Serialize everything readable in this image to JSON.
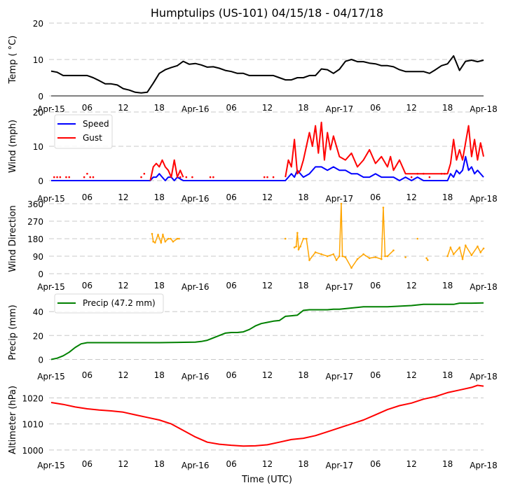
{
  "title": "Humptulips (US-101) 04/15/18 - 04/17/18",
  "xlabel": "Time (UTC)",
  "x_ticks": [
    "Apr-15",
    "06",
    "12",
    "18",
    "Apr-16",
    "06",
    "12",
    "18",
    "Apr-17",
    "06",
    "12",
    "18",
    "Apr-18"
  ],
  "x_range_hours": [
    0,
    72
  ],
  "chart_data": [
    {
      "type": "line",
      "title": "Humptulips (US-101) 04/15/18 - 04/17/18",
      "ylabel": "Temp ( °C)",
      "ylim": [
        0,
        20
      ],
      "yticks": [
        "0",
        "10",
        "20"
      ],
      "grid": true,
      "x_unit": "hours since Apr-15 00 UTC",
      "series": [
        {
          "name": "Temp",
          "color": "#000000",
          "x": [
            0,
            1,
            2,
            3,
            4,
            5,
            6,
            7,
            8,
            9,
            10,
            11,
            12,
            13,
            14,
            15,
            16,
            17,
            18,
            19,
            20,
            21,
            22,
            23,
            24,
            25,
            26,
            27,
            28,
            29,
            30,
            31,
            32,
            33,
            34,
            35,
            36,
            37,
            38,
            39,
            40,
            41,
            42,
            43,
            44,
            45,
            46,
            47,
            48,
            49,
            50,
            51,
            52,
            53,
            54,
            55,
            56,
            57,
            58,
            59,
            60,
            61,
            62,
            63,
            64,
            65,
            66,
            67,
            68,
            69,
            70,
            71,
            72
          ],
          "values": [
            6.8,
            6.5,
            5.6,
            5.6,
            5.6,
            5.6,
            5.6,
            5.0,
            4.2,
            3.3,
            3.3,
            3.0,
            2.0,
            1.6,
            1.0,
            0.8,
            1.0,
            3.5,
            6.2,
            7.2,
            7.8,
            8.3,
            9.5,
            8.7,
            8.9,
            8.5,
            7.9,
            8.0,
            7.6,
            7.0,
            6.7,
            6.2,
            6.2,
            5.6,
            5.6,
            5.6,
            5.6,
            5.6,
            5.0,
            4.4,
            4.4,
            5.0,
            5.0,
            5.6,
            5.6,
            7.4,
            7.2,
            6.2,
            7.3,
            9.5,
            10.0,
            9.4,
            9.4,
            9.0,
            8.8,
            8.3,
            8.3,
            8.0,
            7.2,
            6.7,
            6.7,
            6.7,
            6.7,
            6.7,
            6.2,
            5.6,
            5.6,
            5.3,
            5.0,
            4.4,
            4.4,
            5.0,
            6.5
          ]
        }
      ],
      "series_tail": {
        "x": [
          63,
          64,
          65,
          66,
          67,
          68,
          69,
          70,
          71,
          72
        ],
        "values": [
          6.2,
          7.2,
          8.3,
          8.8,
          11.0,
          7.0,
          9.5,
          9.8,
          9.4,
          9.8
        ]
      }
    },
    {
      "type": "line",
      "ylabel": "Wind (mph)",
      "ylim": [
        0,
        20
      ],
      "yticks": [
        "0",
        "10",
        "20"
      ],
      "grid": true,
      "legend": {
        "placement": "top-left",
        "entries": [
          "Speed",
          "Gust"
        ]
      },
      "series": [
        {
          "name": "Speed",
          "color": "#0000ff",
          "x": [
            0,
            6,
            12,
            16.5,
            17,
            17.5,
            18,
            18.5,
            19,
            19.5,
            20,
            20.5,
            21,
            22,
            24,
            30,
            36,
            38,
            39,
            39.5,
            40,
            40.5,
            41,
            42,
            43,
            44,
            45,
            46,
            47,
            48,
            49,
            50,
            51,
            52,
            53,
            54,
            55,
            56,
            57,
            58,
            59,
            60,
            61,
            62,
            63,
            64,
            65,
            66,
            66.5,
            67,
            67.5,
            68,
            68.5,
            69,
            69.5,
            70,
            70.5,
            71,
            72
          ],
          "values": [
            0,
            0,
            0,
            0,
            1,
            1,
            2,
            1,
            0,
            1,
            1,
            0,
            1,
            0,
            0,
            0,
            0,
            0,
            0,
            1,
            2,
            1,
            3,
            1,
            2,
            4,
            4,
            3,
            4,
            3,
            3,
            2,
            2,
            1,
            1,
            2,
            1,
            1,
            1,
            0,
            1,
            0,
            1,
            0,
            0,
            0,
            0,
            0,
            2,
            1,
            3,
            2,
            3,
            7,
            3,
            4,
            2,
            3,
            1
          ]
        },
        {
          "name": "Gust",
          "color": "#ff0000",
          "x": [
            16.5,
            17,
            17.5,
            18,
            18.5,
            19,
            19.5,
            20,
            20.5,
            21,
            21.5,
            22,
            39,
            39.5,
            40,
            40.5,
            41,
            41.5,
            42,
            43,
            43.5,
            44,
            44.5,
            45,
            45.5,
            46,
            46.5,
            47,
            48,
            49,
            50,
            51,
            52,
            53,
            54,
            55,
            56,
            56.5,
            57,
            58,
            59,
            60,
            66,
            66.5,
            67,
            67.5,
            68,
            68.5,
            69,
            69.5,
            70,
            70.5,
            71,
            71.5,
            72
          ],
          "values": [
            0,
            4,
            5,
            4,
            6,
            4,
            3,
            1,
            6,
            1,
            3,
            1,
            1,
            6,
            4,
            12,
            2,
            3,
            6,
            14,
            10,
            16,
            8,
            17,
            6,
            14,
            9,
            13,
            7,
            6,
            8,
            4,
            6,
            9,
            5,
            7,
            4,
            7,
            3,
            6,
            2,
            2,
            2,
            5,
            12,
            6,
            9,
            6,
            11,
            16,
            7,
            12,
            6,
            11,
            7
          ]
        }
      ]
    },
    {
      "type": "scatter",
      "ylabel": "Wind Direction",
      "ylim": [
        0,
        360
      ],
      "yticks": [
        "0",
        "90",
        "180",
        "270",
        "360"
      ],
      "grid": true,
      "series": [
        {
          "name": "Direction",
          "color": "#ffa500",
          "x": [
            16.8,
            17.0,
            17.3,
            17.8,
            18.3,
            18.6,
            19.0,
            19.5,
            19.9,
            20.3,
            21.0,
            21.3,
            39.0,
            40.5,
            40.8,
            41.0,
            41.2,
            41.5,
            42.0,
            42.5,
            43.0,
            44.0,
            45.0,
            46.0,
            47.0,
            47.5,
            48.0,
            48.3,
            48.5,
            49.0,
            50.0,
            51.0,
            52.0,
            53.0,
            54.0,
            55.0,
            55.3,
            55.6,
            56.0,
            57.0,
            59.0,
            61.0,
            62.5,
            62.7,
            66.0,
            66.5,
            67.0,
            68.0,
            68.5,
            69.0,
            70.0,
            71.0,
            71.5,
            72.0
          ],
          "values": [
            205,
            165,
            160,
            200,
            160,
            200,
            165,
            180,
            180,
            165,
            180,
            180,
            180,
            135,
            140,
            210,
            125,
            140,
            180,
            180,
            70,
            110,
            100,
            90,
            100,
            70,
            90,
            360,
            90,
            85,
            30,
            75,
            100,
            80,
            85,
            75,
            340,
            90,
            90,
            120,
            85,
            180,
            80,
            70,
            90,
            135,
            100,
            135,
            75,
            145,
            95,
            140,
            110,
            130
          ]
        }
      ]
    },
    {
      "type": "line",
      "ylabel": "Precip (mm)",
      "ylim": [
        -5,
        50
      ],
      "yticks": [
        "0",
        "20",
        "40"
      ],
      "grid": true,
      "legend": {
        "placement": "top-left",
        "entries": [
          "Precip (47.2 mm)"
        ]
      },
      "series": [
        {
          "name": "Precip (47.2 mm)",
          "color": "#008000",
          "x": [
            0,
            1,
            2,
            3,
            4,
            5,
            6,
            8,
            12,
            18,
            24,
            25,
            26,
            27,
            28,
            29,
            30,
            31,
            32,
            33,
            34,
            35,
            36,
            37,
            38,
            39,
            40,
            41,
            42,
            43,
            44,
            45,
            46,
            47,
            48,
            50,
            52,
            54,
            56,
            58,
            60,
            62,
            64,
            66,
            67,
            68,
            70,
            72
          ],
          "values": [
            0,
            1,
            3,
            6,
            10,
            13,
            14,
            14,
            14,
            14,
            14.5,
            15,
            16,
            18,
            20,
            22,
            22.5,
            22.5,
            23,
            25,
            28,
            30,
            31,
            32,
            32.5,
            36,
            36.5,
            37,
            41,
            41.5,
            41.5,
            41.5,
            41.5,
            42,
            42,
            43,
            44,
            44,
            44,
            44.5,
            45,
            46,
            46,
            46,
            46,
            47,
            47,
            47.2
          ]
        }
      ]
    },
    {
      "type": "line",
      "ylabel": "Altimeter (hPa)",
      "xlabel": "Time (UTC)",
      "ylim": [
        997,
        1026
      ],
      "yticks": [
        "1000",
        "1010",
        "1020"
      ],
      "grid": true,
      "series": [
        {
          "name": "Altimeter",
          "color": "#ff0000",
          "x": [
            0,
            2,
            4,
            6,
            8,
            10,
            12,
            14,
            16,
            18,
            20,
            22,
            24,
            26,
            28,
            30,
            32,
            34,
            36,
            38,
            40,
            42,
            44,
            46,
            48,
            50,
            52,
            54,
            56,
            58,
            60,
            62,
            64,
            66,
            68,
            70,
            71,
            72
          ],
          "values": [
            1018.2,
            1017.5,
            1016.5,
            1015.8,
            1015.3,
            1015.0,
            1014.5,
            1013.5,
            1012.5,
            1011.5,
            1010.0,
            1007.5,
            1005.0,
            1003.0,
            1002.2,
            1001.8,
            1001.5,
            1001.6,
            1002.0,
            1003.0,
            1004.0,
            1004.5,
            1005.5,
            1007.0,
            1008.5,
            1010.0,
            1011.5,
            1013.5,
            1015.5,
            1017.0,
            1018.0,
            1019.5,
            1020.5,
            1022.0,
            1023.0,
            1024.0,
            1024.8,
            1024.5
          ]
        }
      ]
    }
  ]
}
